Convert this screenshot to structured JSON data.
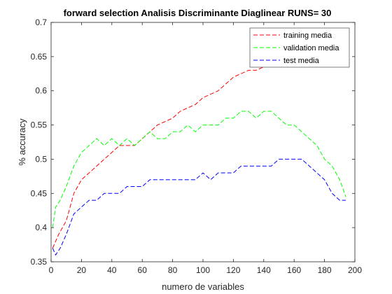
{
  "chart_data": {
    "type": "line",
    "title": "forward selection Analisis Discriminante Diaglinear  RUNS= 30",
    "xlabel": "numero de variables",
    "ylabel": "% accuracy",
    "xlim": [
      0,
      200
    ],
    "ylim": [
      0.35,
      0.7
    ],
    "xticks": [
      "0",
      "20",
      "40",
      "60",
      "80",
      "100",
      "120",
      "140",
      "160",
      "180",
      "200"
    ],
    "yticks": [
      "0.35",
      "0.4",
      "0.45",
      "0.5",
      "0.55",
      "0.6",
      "0.65",
      "0.7"
    ],
    "grid": false,
    "legend_position": "top-right",
    "series": [
      {
        "name": "training media",
        "color": "#ff0000",
        "x": [
          1,
          5,
          10,
          15,
          20,
          25,
          30,
          35,
          40,
          45,
          50,
          55,
          60,
          65,
          70,
          75,
          80,
          85,
          90,
          95,
          100,
          105,
          110,
          115,
          120,
          125,
          130,
          135,
          140,
          145,
          150,
          155,
          160,
          165,
          170,
          175,
          180,
          182
        ],
        "y": [
          0.37,
          0.39,
          0.41,
          0.45,
          0.47,
          0.48,
          0.49,
          0.5,
          0.51,
          0.52,
          0.52,
          0.52,
          0.53,
          0.54,
          0.55,
          0.555,
          0.56,
          0.57,
          0.575,
          0.58,
          0.59,
          0.595,
          0.6,
          0.61,
          0.62,
          0.625,
          0.63,
          0.63,
          0.635,
          0.64,
          0.64,
          0.635,
          0.64,
          0.645,
          0.645,
          0.64,
          0.64,
          0.635
        ]
      },
      {
        "name": "validation media",
        "color": "#00ff00",
        "x": [
          1,
          3,
          6,
          10,
          15,
          20,
          25,
          30,
          35,
          40,
          45,
          50,
          55,
          60,
          65,
          70,
          75,
          80,
          85,
          90,
          95,
          100,
          105,
          110,
          115,
          120,
          125,
          130,
          135,
          140,
          145,
          150,
          155,
          160,
          165,
          170,
          175,
          180,
          185,
          190,
          194
        ],
        "y": [
          0.4,
          0.43,
          0.44,
          0.46,
          0.49,
          0.51,
          0.52,
          0.53,
          0.52,
          0.53,
          0.52,
          0.53,
          0.52,
          0.53,
          0.54,
          0.53,
          0.53,
          0.54,
          0.54,
          0.55,
          0.54,
          0.55,
          0.55,
          0.55,
          0.56,
          0.56,
          0.57,
          0.57,
          0.56,
          0.57,
          0.57,
          0.56,
          0.55,
          0.55,
          0.54,
          0.53,
          0.52,
          0.5,
          0.49,
          0.47,
          0.445
        ]
      },
      {
        "name": "test media",
        "color": "#0000ff",
        "x": [
          1,
          3,
          6,
          10,
          15,
          20,
          25,
          30,
          35,
          40,
          45,
          50,
          55,
          60,
          65,
          70,
          75,
          80,
          85,
          90,
          95,
          100,
          105,
          110,
          115,
          120,
          125,
          130,
          135,
          140,
          145,
          150,
          155,
          160,
          165,
          170,
          175,
          180,
          185,
          190,
          194
        ],
        "y": [
          0.37,
          0.36,
          0.37,
          0.39,
          0.42,
          0.43,
          0.44,
          0.44,
          0.45,
          0.45,
          0.45,
          0.46,
          0.46,
          0.46,
          0.47,
          0.47,
          0.47,
          0.47,
          0.47,
          0.47,
          0.47,
          0.48,
          0.47,
          0.48,
          0.48,
          0.48,
          0.49,
          0.49,
          0.49,
          0.49,
          0.49,
          0.5,
          0.5,
          0.5,
          0.5,
          0.49,
          0.48,
          0.47,
          0.45,
          0.44,
          0.44
        ]
      }
    ]
  }
}
